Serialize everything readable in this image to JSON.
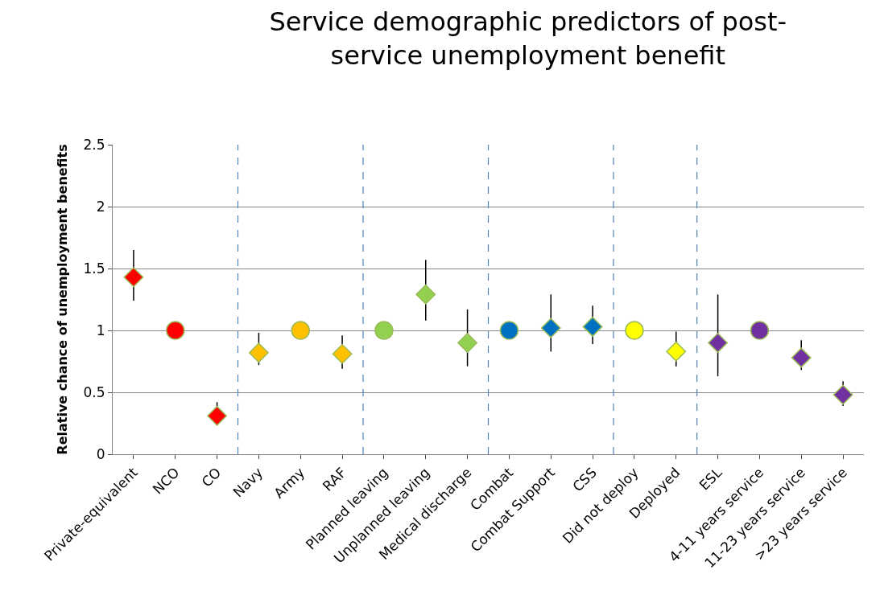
{
  "chart_data": {
    "type": "scatter",
    "title": "Service demographic predictors of post-service unemployment benefit",
    "ylabel": "Relative chance of unemployment benefits",
    "categories": [
      "Private-equivalent",
      "NCO",
      "CO",
      "Navy",
      "Army",
      "RAF",
      "Planned leaving",
      "Unplanned leaving",
      "Medical discharge",
      "Combat",
      "Combat Support",
      "CSS",
      "Did not deploy",
      "Deployed",
      "ESL",
      "4-11 years service",
      "11-23 years service",
      ">23 years service"
    ],
    "series": [
      {
        "marker": "diamond",
        "values": [
          1.43,
          null,
          0.31,
          0.82,
          null,
          0.81,
          null,
          1.29,
          0.9,
          null,
          1.02,
          1.03,
          null,
          0.83,
          0.9,
          null,
          0.78,
          0.48
        ],
        "errors": [
          [
            1.24,
            1.65
          ],
          null,
          [
            0.25,
            0.42
          ],
          [
            0.72,
            0.98
          ],
          null,
          [
            0.69,
            0.96
          ],
          null,
          [
            1.08,
            1.57
          ],
          [
            0.71,
            1.17
          ],
          null,
          [
            0.83,
            1.29
          ],
          [
            0.89,
            1.2
          ],
          null,
          [
            0.71,
            0.99
          ],
          [
            0.63,
            1.29
          ],
          null,
          [
            0.68,
            0.92
          ],
          [
            0.39,
            0.59
          ]
        ],
        "colors": [
          "#ff0000",
          null,
          "#ff0000",
          "#ffc000",
          null,
          "#ffc000",
          null,
          "#92d050",
          "#92d050",
          null,
          "#0070c0",
          "#0070c0",
          null,
          "#ffff00",
          "#7030a0",
          null,
          "#7030a0",
          "#7030a0"
        ]
      },
      {
        "marker": "circle",
        "values": [
          null,
          1,
          null,
          null,
          1,
          null,
          1,
          null,
          null,
          1,
          null,
          null,
          1,
          null,
          null,
          1,
          null,
          null
        ],
        "colors": [
          null,
          "#ff0000",
          null,
          null,
          "#ffc000",
          null,
          "#92d050",
          null,
          null,
          "#0070c0",
          null,
          null,
          "#ffff00",
          null,
          null,
          "#7030a0",
          null,
          null
        ]
      }
    ],
    "ylim": [
      0,
      2.5
    ],
    "yticks": [
      0,
      0.5,
      1,
      1.5,
      2,
      2.5
    ],
    "grid": "y"
  }
}
